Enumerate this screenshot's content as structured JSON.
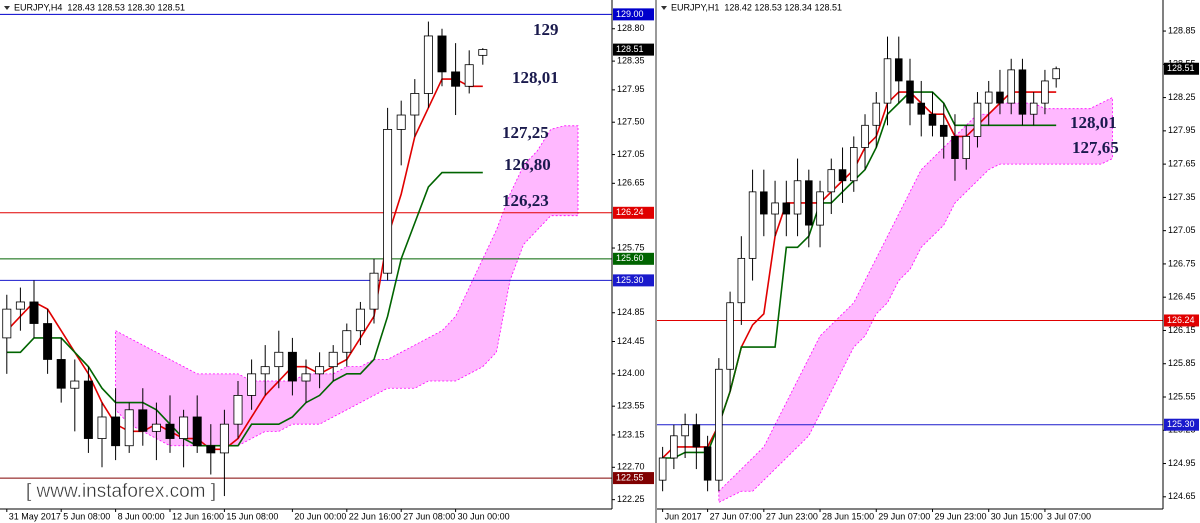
{
  "chart_data": [
    {
      "type": "candlestick",
      "header": "EURJPY,H4  128.43 128.53 128.30 128.51",
      "watermark": "[ www.instaforex.com ]",
      "categories": [
        "31 May 2017",
        null,
        null,
        null,
        "5 Jun 08:00",
        null,
        null,
        null,
        "8 Jun 00:00",
        null,
        null,
        null,
        "12 Jun 16:00",
        null,
        null,
        null,
        "15 Jun 08:00",
        null,
        null,
        null,
        null,
        "20 Jun 00:00",
        null,
        null,
        null,
        "22 Jun 16:00",
        null,
        null,
        null,
        "27 Jun 08:00",
        null,
        null,
        null,
        "30 Jun 00:00",
        null,
        null,
        null,
        null,
        null,
        null,
        null,
        null,
        null,
        null,
        null
      ],
      "open": [
        124.5,
        124.9,
        125.0,
        124.7,
        124.2,
        123.8,
        123.9,
        123.1,
        123.4,
        123.0,
        123.5,
        123.2,
        123.3,
        123.1,
        123.4,
        123.0,
        122.9,
        123.3,
        123.7,
        124.0,
        124.1,
        124.3,
        123.9,
        124.0,
        124.1,
        124.3,
        124.6,
        124.9,
        125.4,
        127.4,
        127.6,
        127.9,
        128.7,
        128.2,
        128.0,
        128.43,
        null,
        null,
        null,
        null,
        null,
        null,
        null,
        null,
        null
      ],
      "high": [
        125.1,
        125.2,
        125.3,
        124.9,
        124.5,
        124.2,
        124.1,
        123.6,
        123.8,
        123.6,
        123.8,
        123.6,
        123.7,
        123.5,
        123.7,
        123.3,
        123.5,
        123.9,
        124.2,
        124.4,
        124.6,
        124.5,
        124.2,
        124.3,
        124.4,
        124.7,
        125.0,
        125.6,
        127.7,
        127.8,
        128.1,
        128.9,
        128.8,
        128.6,
        128.5,
        128.53,
        null,
        null,
        null,
        null,
        null,
        null,
        null,
        null,
        null
      ],
      "low": [
        124.0,
        124.6,
        124.5,
        124.0,
        123.6,
        123.2,
        122.9,
        122.7,
        122.8,
        122.9,
        123.0,
        122.8,
        122.9,
        122.7,
        122.9,
        122.6,
        122.3,
        123.1,
        123.5,
        123.7,
        123.8,
        123.7,
        123.6,
        123.8,
        123.9,
        124.1,
        124.4,
        124.7,
        125.3,
        126.9,
        127.3,
        127.7,
        128.0,
        127.6,
        127.9,
        128.3,
        null,
        null,
        null,
        null,
        null,
        null,
        null,
        null,
        null
      ],
      "close": [
        124.9,
        125.0,
        124.7,
        124.2,
        123.8,
        123.9,
        123.1,
        123.4,
        123.0,
        123.5,
        123.2,
        123.3,
        123.1,
        123.4,
        123.0,
        122.9,
        123.3,
        123.7,
        124.0,
        124.1,
        124.3,
        123.9,
        124.0,
        124.1,
        124.3,
        124.6,
        124.9,
        125.4,
        127.4,
        127.6,
        127.9,
        128.7,
        128.2,
        128.0,
        128.3,
        128.51,
        null,
        null,
        null,
        null,
        null,
        null,
        null,
        null,
        null
      ],
      "series": [
        {
          "color": "#e00000",
          "values": [
            124.6,
            124.8,
            125.0,
            124.9,
            124.6,
            124.3,
            124.0,
            123.6,
            123.3,
            123.2,
            123.2,
            123.3,
            123.2,
            123.1,
            123.1,
            122.95,
            122.95,
            123.1,
            123.4,
            123.7,
            123.9,
            124.1,
            124.1,
            124.0,
            124.1,
            124.2,
            124.5,
            124.8,
            125.9,
            126.5,
            127.3,
            127.7,
            128.1,
            128.1,
            128.0,
            128.0,
            null,
            null,
            null,
            null,
            null,
            null,
            null,
            null,
            null
          ]
        },
        {
          "color": "#006400",
          "values": [
            124.3,
            124.3,
            124.5,
            124.5,
            124.5,
            124.3,
            124.1,
            123.8,
            123.6,
            123.6,
            123.6,
            123.5,
            123.3,
            123.1,
            123.0,
            123.0,
            123.0,
            123.0,
            123.3,
            123.3,
            123.3,
            123.4,
            123.6,
            123.7,
            123.9,
            124.0,
            124.0,
            124.2,
            124.8,
            125.6,
            126.1,
            126.6,
            126.8,
            126.8,
            126.8,
            126.8,
            null,
            null,
            null,
            null,
            null,
            null,
            null,
            null,
            null
          ]
        }
      ],
      "cloud": {
        "color": "#ff00ff",
        "lower": [
          null,
          null,
          null,
          null,
          null,
          null,
          null,
          null,
          123.5,
          123.3,
          123.2,
          123.1,
          123.0,
          123.0,
          123.0,
          123.0,
          123.0,
          123.0,
          123.1,
          123.2,
          123.2,
          123.3,
          123.3,
          123.3,
          123.4,
          123.5,
          123.6,
          123.7,
          123.8,
          123.8,
          123.8,
          123.9,
          123.9,
          123.9,
          124.0,
          124.1,
          124.3,
          125.3,
          125.8,
          126.0,
          126.2,
          126.2,
          126.2,
          null,
          null
        ],
        "upper": [
          null,
          null,
          null,
          null,
          null,
          null,
          null,
          null,
          124.6,
          124.5,
          124.4,
          124.3,
          124.2,
          124.1,
          124.0,
          124.0,
          124.0,
          124.0,
          123.9,
          123.9,
          123.9,
          123.9,
          124.0,
          124.0,
          124.0,
          124.1,
          124.1,
          124.2,
          124.2,
          124.3,
          124.4,
          124.5,
          124.6,
          124.8,
          125.2,
          125.6,
          126.0,
          126.5,
          126.9,
          127.1,
          127.4,
          127.45,
          127.45,
          null,
          null
        ]
      },
      "ylim": [
        122.12,
        129.2
      ],
      "yticks": [
        {
          "value": 128.8,
          "label": "128.80"
        },
        128.35,
        127.95,
        {
          "value": 127.5,
          "label": "127.50"
        },
        127.05,
        126.65,
        125.75,
        124.85,
        124.45,
        {
          "value": 124.0,
          "label": "124.00"
        },
        123.55,
        123.15,
        {
          "value": 122.7,
          "label": "122.70"
        },
        122.25
      ],
      "levels": [
        {
          "value": 129,
          "label": "129.00",
          "color": "#0000cc"
        },
        {
          "value": 128.51,
          "color": "#000000",
          "line": false
        },
        {
          "value": 126.24,
          "color": "#e00000"
        },
        {
          "value": 125.6,
          "label": "125.60",
          "color": "#006400"
        },
        {
          "value": 125.3,
          "label": "125.30",
          "color": "#1a1acc"
        },
        {
          "value": 122.55,
          "color": "#800000"
        }
      ],
      "annotations": [
        "129",
        "128,01",
        "127,25",
        "126,80",
        "126,23"
      ]
    },
    {
      "type": "candlestick",
      "header": "EURJPY,H1  128.42 128.53 128.34 128.51",
      "categories": [
        "Jun 2017",
        null,
        null,
        null,
        "27 Jun 07:00",
        null,
        null,
        null,
        null,
        "27 Jun 23:00",
        null,
        null,
        null,
        null,
        "28 Jun 15:00",
        null,
        null,
        null,
        null,
        "29 Jun 07:00",
        null,
        null,
        null,
        null,
        "29 Jun 23:00",
        null,
        null,
        null,
        null,
        "30 Jun 15:00",
        null,
        null,
        null,
        null,
        "3 Jul 07:00",
        null,
        null,
        null,
        null,
        null,
        null,
        null,
        null,
        null,
        null
      ],
      "open": [
        124.8,
        125.0,
        125.2,
        125.3,
        125.1,
        124.8,
        125.8,
        126.4,
        126.8,
        127.4,
        127.2,
        127.3,
        127.2,
        127.5,
        127.1,
        127.4,
        127.6,
        127.5,
        127.8,
        128.0,
        128.2,
        128.6,
        128.4,
        128.2,
        128.1,
        128.0,
        127.9,
        127.7,
        127.9,
        128.2,
        128.3,
        128.2,
        128.5,
        128.1,
        128.2,
        128.42,
        null,
        null,
        null,
        null,
        null,
        null,
        null,
        null,
        null
      ],
      "high": [
        125.1,
        125.3,
        125.4,
        125.4,
        125.2,
        125.9,
        126.5,
        127.0,
        127.6,
        127.6,
        127.5,
        127.5,
        127.7,
        127.6,
        127.5,
        127.7,
        127.8,
        127.9,
        128.1,
        128.3,
        128.8,
        128.8,
        128.6,
        128.4,
        128.3,
        128.2,
        128.1,
        128.0,
        128.3,
        128.4,
        128.5,
        128.6,
        128.6,
        128.3,
        128.5,
        128.53,
        null,
        null,
        null,
        null,
        null,
        null,
        null,
        null,
        null
      ],
      "low": [
        124.7,
        124.9,
        125.0,
        124.9,
        124.7,
        124.7,
        125.6,
        126.2,
        126.6,
        127.0,
        127.0,
        127.0,
        127.0,
        126.9,
        126.9,
        127.2,
        127.3,
        127.4,
        127.6,
        127.8,
        128.0,
        128.2,
        128.0,
        127.9,
        127.9,
        127.7,
        127.5,
        127.6,
        127.8,
        128.0,
        128.1,
        128.1,
        128.0,
        128.0,
        128.1,
        128.34,
        null,
        null,
        null,
        null,
        null,
        null,
        null,
        null,
        null
      ],
      "close": [
        125.0,
        125.2,
        125.3,
        125.1,
        124.8,
        125.8,
        126.4,
        126.8,
        127.4,
        127.2,
        127.3,
        127.2,
        127.5,
        127.1,
        127.4,
        127.6,
        127.5,
        127.8,
        128.0,
        128.2,
        128.6,
        128.4,
        128.2,
        128.1,
        128.0,
        127.9,
        127.7,
        127.9,
        128.2,
        128.3,
        128.2,
        128.5,
        128.1,
        128.2,
        128.4,
        128.51,
        null,
        null,
        null,
        null,
        null,
        null,
        null,
        null,
        null
      ],
      "series": [
        {
          "color": "#e00000",
          "values": [
            125.0,
            125.1,
            125.1,
            125.1,
            125.1,
            125.3,
            125.6,
            126.0,
            126.2,
            126.3,
            127.0,
            127.3,
            127.3,
            127.3,
            127.3,
            127.4,
            127.5,
            127.6,
            127.8,
            127.9,
            128.2,
            128.3,
            128.3,
            128.2,
            128.1,
            128.1,
            127.9,
            127.9,
            128.0,
            128.1,
            128.2,
            128.3,
            128.3,
            128.3,
            128.3,
            128.3,
            null,
            null,
            null,
            null,
            null,
            null,
            null,
            null,
            null
          ]
        },
        {
          "color": "#006400",
          "values": [
            125.0,
            125.0,
            125.05,
            125.05,
            125.05,
            125.3,
            125.6,
            126.0,
            126.0,
            126.0,
            126.0,
            126.9,
            126.9,
            127.0,
            127.3,
            127.3,
            127.4,
            127.5,
            127.6,
            127.8,
            128.1,
            128.2,
            128.3,
            128.3,
            128.3,
            128.2,
            128.0,
            128.0,
            128.0,
            128.0,
            128.0,
            128.0,
            128.0,
            128.0,
            128.0,
            128.0,
            null,
            null,
            null,
            null,
            null,
            null,
            null,
            null,
            null
          ]
        }
      ],
      "cloud": {
        "color": "#ff00ff",
        "lower": [
          null,
          null,
          null,
          null,
          null,
          124.6,
          124.65,
          124.7,
          124.7,
          124.8,
          124.9,
          125.0,
          125.1,
          125.2,
          125.4,
          125.6,
          125.8,
          126.0,
          126.1,
          126.3,
          126.4,
          126.6,
          126.7,
          126.9,
          127.0,
          127.1,
          127.3,
          127.4,
          127.5,
          127.6,
          127.65,
          127.65,
          127.65,
          127.65,
          127.65,
          127.65,
          127.65,
          127.65,
          127.65,
          127.65,
          127.7,
          null,
          null,
          null,
          null
        ],
        "upper": [
          null,
          null,
          null,
          null,
          null,
          124.7,
          124.8,
          124.9,
          125.0,
          125.1,
          125.3,
          125.5,
          125.7,
          125.9,
          126.1,
          126.2,
          126.3,
          126.4,
          126.6,
          126.8,
          127.0,
          127.2,
          127.4,
          127.6,
          127.7,
          127.8,
          127.9,
          128.0,
          128.1,
          128.1,
          128.2,
          128.2,
          128.2,
          128.2,
          128.15,
          128.15,
          128.15,
          128.15,
          128.15,
          128.2,
          128.25,
          null,
          null,
          null,
          null
        ]
      },
      "ylim": [
        124.54,
        129.13
      ],
      "yticks": [
        128.85,
        128.55,
        128.25,
        127.95,
        127.65,
        127.35,
        127.05,
        126.75,
        126.45,
        126.15,
        125.85,
        125.55,
        125.25,
        124.95,
        124.65
      ],
      "levels": [
        {
          "value": 128.51,
          "color": "#000000",
          "line": false
        },
        {
          "value": 126.24,
          "color": "#e00000"
        },
        {
          "value": 125.3,
          "label": "125.30",
          "color": "#1a1acc"
        }
      ],
      "annotations": [
        "128,01",
        "127,65"
      ]
    }
  ]
}
